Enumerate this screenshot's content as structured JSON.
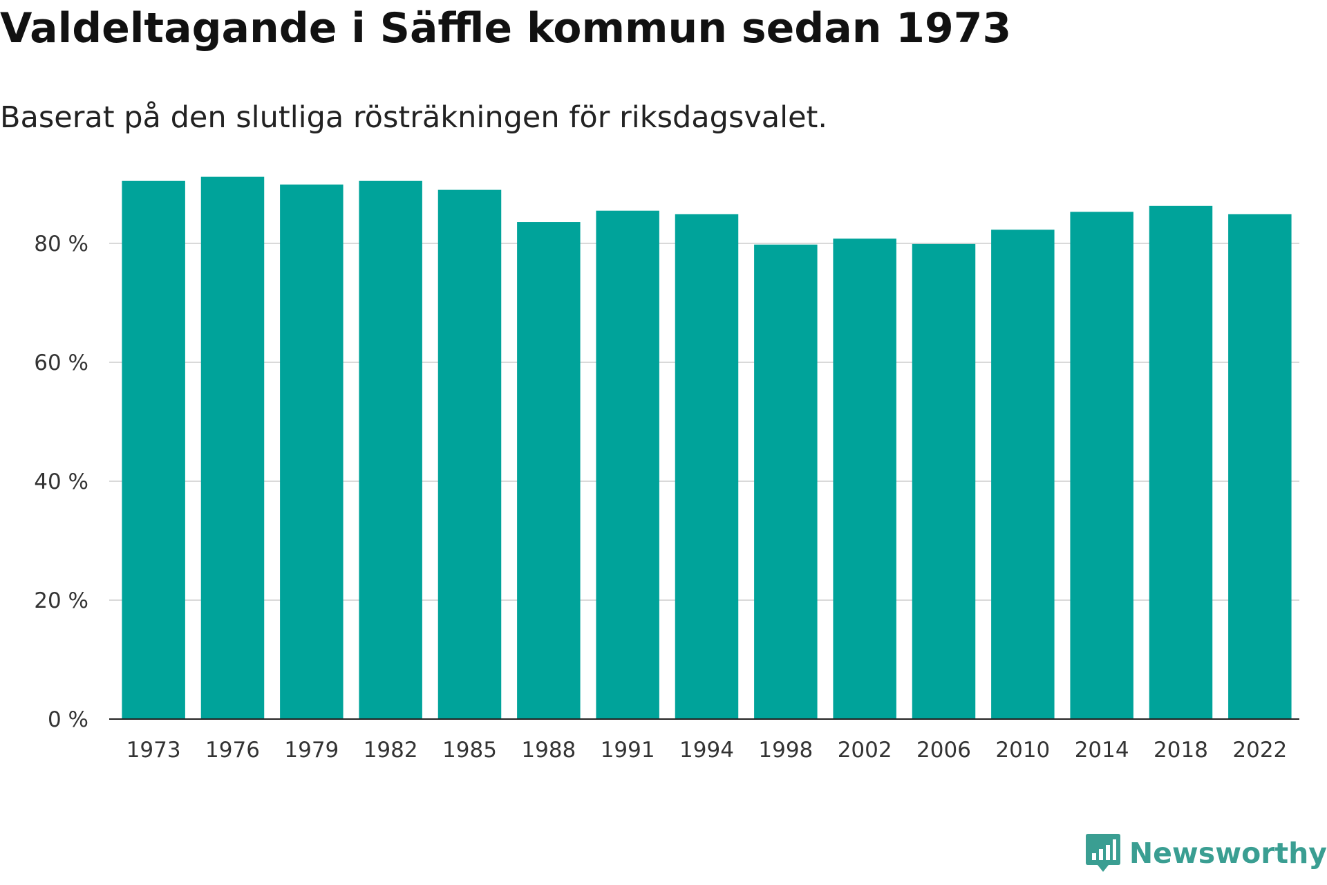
{
  "chart_data": {
    "type": "bar",
    "title": "Valdeltagande i Säffle kommun sedan 1973",
    "subtitle": "Baserat på den slutliga rösträkningen för riksdagsvalet.",
    "categories": [
      "1973",
      "1976",
      "1979",
      "1982",
      "1985",
      "1988",
      "1991",
      "1994",
      "1998",
      "2002",
      "2006",
      "2010",
      "2014",
      "2018",
      "2022"
    ],
    "values": [
      90.5,
      91.2,
      89.9,
      90.5,
      89.0,
      83.6,
      85.5,
      84.9,
      79.8,
      80.8,
      79.9,
      82.3,
      85.3,
      86.3,
      84.9
    ],
    "yticks": [
      "0 %",
      "20 %",
      "40 %",
      "60 %",
      "80 %"
    ],
    "ytick_values": [
      0,
      20,
      40,
      60,
      80
    ],
    "ylim": [
      0,
      100
    ],
    "grid": true,
    "bar_color": "#00a39a"
  },
  "brand": {
    "name": "Newsworthy",
    "logo_icon": "bar-chart-speech-bubble-icon",
    "color": "#3a9e92"
  }
}
